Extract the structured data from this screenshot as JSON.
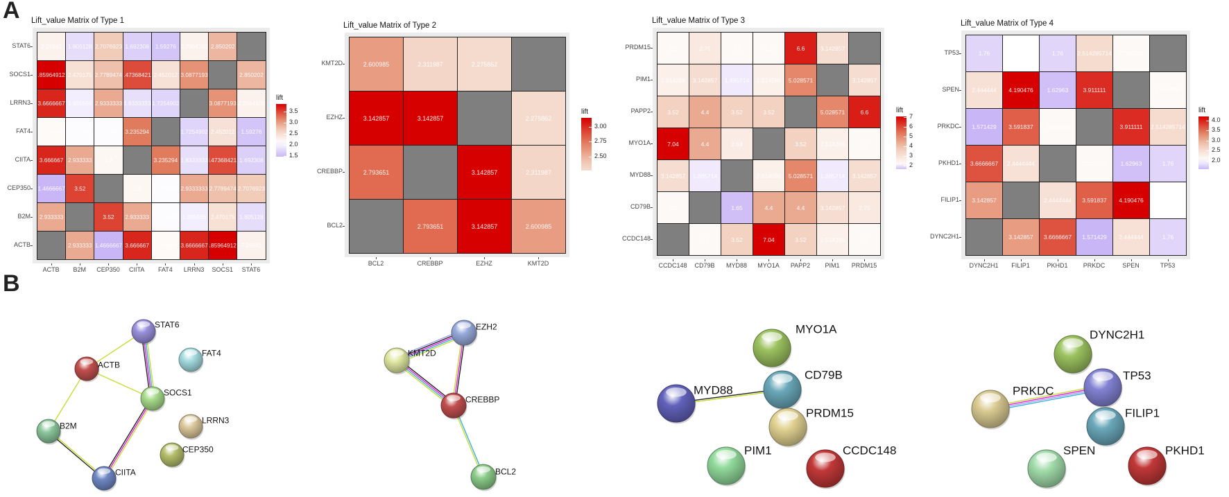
{
  "panel_labels": {
    "a": "A",
    "b": "B"
  },
  "chart_data": [
    {
      "type": "heatmap",
      "title": "Lift_value Matrix of Type 1",
      "rows": [
        "STAT6",
        "SOCS1",
        "LRRN3",
        "FAT4",
        "CIITA",
        "CEP350",
        "B2M",
        "ACTB"
      ],
      "cols": [
        "ACTB",
        "B2M",
        "CEP350",
        "CIITA",
        "FAT4",
        "LRRN3",
        "SOCS1",
        "STAT6"
      ],
      "cells": [
        [
          "2.25641",
          "1.805128",
          "2.7076923",
          "1.692308",
          "1.59276",
          "2.2564103",
          "2.850202",
          null
        ],
        [
          "3.859649123",
          "2.470175",
          "2.7789474",
          "3.473684211",
          "2.452012",
          "3.0877193",
          null,
          "2.850202"
        ],
        [
          "3.6666667",
          "1.955556",
          "2.9333333",
          "1.8333333",
          "1.7254902",
          null,
          "3.0877193",
          "2.2564103"
        ],
        [
          "2.156863",
          "2.070588",
          "2.0705882",
          "3.235294",
          null,
          "1.7254902",
          "2.452012",
          "1.59276"
        ],
        [
          "3.666667",
          "2.933333",
          "2.2",
          null,
          "3.235294",
          "1.8333333",
          "3.473684211",
          "1.692308"
        ],
        [
          "1.4666667",
          "3.52",
          null,
          "2.2",
          "2.0705882",
          "2.9333333",
          "2.7789474",
          "2.7076923"
        ],
        [
          "2.933333",
          null,
          "3.52",
          "2.933333",
          "2.070588",
          "1.955556",
          "2.470175",
          "1.805128"
        ],
        [
          null,
          "2.933333",
          "1.4666667",
          "3.666667",
          "2.156863",
          "3.6666667",
          "3.859649123",
          "2.25641"
        ]
      ],
      "legend": {
        "title": "lift",
        "ticks": [
          "3.5",
          "3.0",
          "2.5",
          "2.0",
          "1.5"
        ],
        "tick_values": [
          3.5,
          3.0,
          2.5,
          2.0,
          1.5
        ]
      },
      "scale": {
        "min": 1.4666667,
        "mid": 2.1,
        "max": 3.859649,
        "low_color": "#c9b6f6",
        "mid_color": "#ffffff",
        "high_color": "#d60000",
        "na_color": "#7f7f7f"
      }
    },
    {
      "type": "heatmap",
      "title": "Lift_value Matrix of Type 2",
      "rows": [
        "KMT2D",
        "EZHZ",
        "CREBBP",
        "BCL2"
      ],
      "cols": [
        "BCL2",
        "CREBBP",
        "EZHZ",
        "KMT2D"
      ],
      "cells": [
        [
          "2.600985",
          "2.311987",
          "2.275862",
          null
        ],
        [
          "3.142857",
          "3.142857",
          null,
          "2.275862"
        ],
        [
          "2.793651",
          null,
          "3.142857",
          "2.311987"
        ],
        [
          null,
          "2.793651",
          "3.142857",
          "2.600985"
        ]
      ],
      "legend": {
        "title": "lift",
        "ticks": [
          "3.00",
          "2.75",
          "2.50"
        ],
        "tick_values": [
          3.0,
          2.75,
          2.5
        ]
      },
      "scale": {
        "min": 2.275862,
        "mid": 2.0,
        "max": 3.142857,
        "low_color": "#c9b6f6",
        "mid_color": "#ffffff",
        "high_color": "#d60000",
        "na_color": "#7f7f7f"
      }
    },
    {
      "type": "heatmap",
      "title": "Lift_value Matrix of Type 3",
      "rows": [
        "PRDM15",
        "PIM1",
        "PAPP2",
        "MYO1A",
        "MYD88",
        "CD79B",
        "CCDC148"
      ],
      "cols": [
        "CCDC148",
        "CD79B",
        "MYD88",
        "MYO1A",
        "PAPP2",
        "PIM1",
        "PRDM15"
      ],
      "cells": [
        [
          "2.2",
          "2.75",
          "2.2",
          "2.2",
          "6.6",
          "3.142857",
          null
        ],
        [
          "2.514286",
          "3.142857",
          "1.885714",
          "2.514286",
          "5.028571",
          null,
          "3.142857"
        ],
        [
          "3.52",
          "4.4",
          "3.52",
          "3.52",
          null,
          "5.028571",
          "6.6"
        ],
        [
          "7.04",
          "4.4",
          "2.64",
          null,
          "3.52",
          "2.514286",
          "2.2"
        ],
        [
          "3.142857",
          "1.885714",
          null,
          "2.514286",
          "5.028571",
          "1.885714",
          "3.142857"
        ],
        [
          "2.2",
          null,
          "1.65",
          "4.4",
          "4.4",
          "3.142857",
          "2.75"
        ],
        [
          null,
          "2.2",
          "3.52",
          "7.04",
          "3.52",
          "2.514286",
          "2.2"
        ]
      ],
      "legend": {
        "title": "lift",
        "ticks": [
          "7",
          "6",
          "5",
          "4",
          "3",
          "2"
        ],
        "tick_values": [
          7,
          6,
          5,
          4,
          3,
          2
        ]
      },
      "scale": {
        "min": 1.65,
        "mid": 2.0,
        "max": 7.04,
        "low_color": "#c9b6f6",
        "mid_color": "#ffffff",
        "high_color": "#d60000",
        "na_color": "#7f7f7f"
      }
    },
    {
      "type": "heatmap",
      "title": "Lift_value Matrix of Type 4",
      "rows": [
        "TP53",
        "SPEN",
        "PRKDC",
        "PKHD1",
        "FILIP1",
        "DYNC2H1"
      ],
      "cols": [
        "DYNC2H1",
        "FILIP1",
        "PKHD1",
        "PRKDC",
        "SPEN",
        "TP53"
      ],
      "cells": [
        [
          "1.76",
          "2.0",
          "1.76",
          "2.514285714",
          "2.095238",
          null
        ],
        [
          "2.444444",
          "4.190476",
          "1.62963",
          "3.911111",
          null,
          "2.095238"
        ],
        [
          "1.571429",
          "3.591837",
          "2.095238",
          null,
          "3.911111",
          "2.514285714"
        ],
        [
          "3.6666667",
          "2.4444444",
          null,
          "2.095238",
          "1.62963",
          "1.76"
        ],
        [
          "3.142857",
          null,
          "2.4444444",
          "3.591837",
          "4.190476",
          "2.0"
        ],
        [
          null,
          "3.142857",
          "3.6666667",
          "1.571429",
          "2.444444",
          "1.76"
        ]
      ],
      "legend": {
        "title": "lift",
        "ticks": [
          "4.0",
          "3.5",
          "3.0",
          "2.5",
          "2.0"
        ],
        "tick_values": [
          4.0,
          3.5,
          3.0,
          2.5,
          2.0
        ]
      },
      "scale": {
        "min": 1.571429,
        "mid": 2.0,
        "max": 4.190476,
        "low_color": "#c9b6f6",
        "mid_color": "#ffffff",
        "high_color": "#d60000",
        "na_color": "#7f7f7f"
      }
    }
  ],
  "networks": [
    {
      "nodes": [
        {
          "id": "STAT6",
          "color": "#9a90dc"
        },
        {
          "id": "ACTB",
          "color": "#c2504f"
        },
        {
          "id": "FAT4",
          "color": "#a4dce0"
        },
        {
          "id": "SOCS1",
          "color": "#a8dc8c"
        },
        {
          "id": "B2M",
          "color": "#8cc69c"
        },
        {
          "id": "LRRN3",
          "color": "#dcc89c"
        },
        {
          "id": "CEP350",
          "color": "#b4be6a"
        },
        {
          "id": "CIITA",
          "color": "#6f88c4"
        }
      ],
      "edges": [
        {
          "from": "STAT6",
          "to": "ACTB",
          "colors": [
            "#c8dc32"
          ]
        },
        {
          "from": "ACTB",
          "to": "SOCS1",
          "colors": [
            "#c8dc32"
          ]
        },
        {
          "from": "ACTB",
          "to": "B2M",
          "colors": [
            "#c8dc32"
          ]
        },
        {
          "from": "STAT6",
          "to": "SOCS1",
          "colors": [
            "#c8dc32",
            "#38b0e0",
            "#e020e0",
            "#222222"
          ]
        },
        {
          "from": "SOCS1",
          "to": "CIITA",
          "colors": [
            "#c8dc32",
            "#e020e0",
            "#222222"
          ]
        },
        {
          "from": "B2M",
          "to": "CIITA",
          "colors": [
            "#c8dc32",
            "#222222"
          ]
        }
      ]
    },
    {
      "nodes": [
        {
          "id": "EZH2",
          "color": "#98aadc"
        },
        {
          "id": "KMT2D",
          "color": "#e0e8a2"
        },
        {
          "id": "CREBBP",
          "color": "#c24e4e"
        },
        {
          "id": "BCL2",
          "color": "#8ccc8a"
        }
      ],
      "edges": [
        {
          "from": "KMT2D",
          "to": "EZH2",
          "colors": [
            "#a0a0f0",
            "#222222",
            "#e020e0",
            "#38b0e0",
            "#c8dc32"
          ]
        },
        {
          "from": "KMT2D",
          "to": "CREBBP",
          "colors": [
            "#222222",
            "#e020e0",
            "#38b0e0",
            "#c8dc32"
          ]
        },
        {
          "from": "EZH2",
          "to": "CREBBP",
          "colors": [
            "#222222",
            "#e020e0",
            "#c8dc32"
          ]
        },
        {
          "from": "CREBBP",
          "to": "BCL2",
          "colors": [
            "#38b0e0",
            "#c8dc32"
          ]
        }
      ]
    },
    {
      "nodes": [
        {
          "id": "MYO1A",
          "color": "#9cc260"
        },
        {
          "id": "CD79B",
          "color": "#6aa8ba"
        },
        {
          "id": "MYD88",
          "color": "#6262bc"
        },
        {
          "id": "PRDM15",
          "color": "#e2d292"
        },
        {
          "id": "PIM1",
          "color": "#92da9c"
        },
        {
          "id": "CCDC148",
          "color": "#c23838"
        }
      ],
      "edges": [
        {
          "from": "MYD88",
          "to": "CD79B",
          "colors": [
            "#222222",
            "#c8dc32"
          ]
        }
      ]
    },
    {
      "nodes": [
        {
          "id": "DYNC2H1",
          "color": "#9cc260"
        },
        {
          "id": "TP53",
          "color": "#8282d4"
        },
        {
          "id": "PRKDC",
          "color": "#dacb92"
        },
        {
          "id": "FILIP1",
          "color": "#6aa8ba"
        },
        {
          "id": "SPEN",
          "color": "#a2dcaa"
        },
        {
          "id": "PKHD1",
          "color": "#c23838"
        }
      ],
      "edges": [
        {
          "from": "PRKDC",
          "to": "TP53",
          "colors": [
            "#c8dc32",
            "#e020e0",
            "#a0a0f0",
            "#38b0e0"
          ]
        }
      ]
    }
  ]
}
